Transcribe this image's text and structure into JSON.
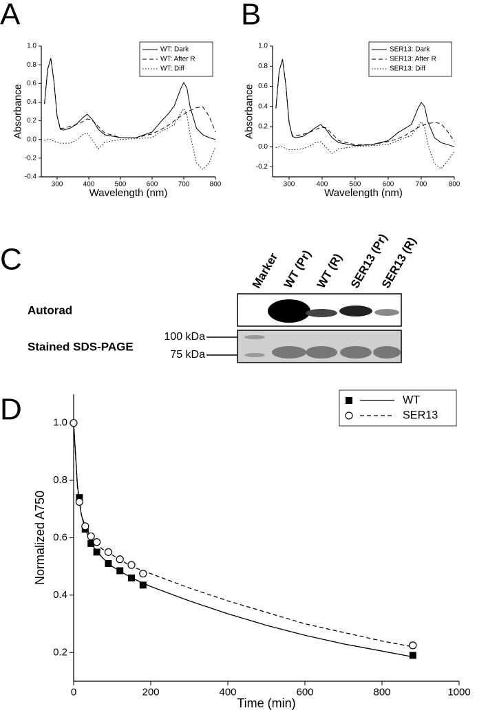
{
  "panel_labels": [
    "A",
    "B",
    "C",
    "D"
  ],
  "gel": {
    "lanes": [
      "Marker",
      "WT (Pr)",
      "WT (R)",
      "SER13 (Pr)",
      "SER13 (R)"
    ],
    "rows": [
      "Autorad",
      "Stained SDS-PAGE"
    ],
    "markers": [
      "100 kDa",
      "75 kDa"
    ]
  },
  "chart_data": [
    {
      "type": "line",
      "x_label": "Wavelength (nm)",
      "y_label": "Absorbance",
      "x": [
        260,
        270,
        280,
        290,
        300,
        310,
        320,
        340,
        360,
        380,
        395,
        410,
        430,
        450,
        500,
        550,
        600,
        630,
        650,
        670,
        690,
        700,
        710,
        720,
        740,
        760,
        780,
        800
      ],
      "series": [
        {
          "name": "WT: Dark",
          "color": "#000000",
          "style": "solid",
          "values": [
            0.38,
            0.75,
            0.87,
            0.62,
            0.25,
            0.11,
            0.1,
            0.12,
            0.16,
            0.23,
            0.27,
            0.22,
            0.11,
            0.05,
            0.02,
            0.02,
            0.08,
            0.2,
            0.27,
            0.36,
            0.54,
            0.61,
            0.55,
            0.35,
            0.12,
            0.05,
            0.02,
            0.0
          ]
        },
        {
          "name": "WT: After R",
          "color": "#000000",
          "style": "dashed",
          "values": [
            0.38,
            0.75,
            0.87,
            0.62,
            0.25,
            0.12,
            0.12,
            0.14,
            0.16,
            0.19,
            0.22,
            0.21,
            0.14,
            0.07,
            0.02,
            0.02,
            0.06,
            0.11,
            0.15,
            0.2,
            0.25,
            0.27,
            0.29,
            0.31,
            0.34,
            0.35,
            0.25,
            0.08
          ]
        },
        {
          "name": "WT: Diff",
          "color": "#000000",
          "style": "dotted",
          "values": [
            -0.01,
            0.0,
            0.0,
            -0.02,
            -0.03,
            -0.04,
            -0.04,
            -0.04,
            -0.01,
            0.05,
            0.07,
            0.0,
            -0.1,
            -0.03,
            0.0,
            0.01,
            0.02,
            0.09,
            0.12,
            0.16,
            0.28,
            0.33,
            0.26,
            0.05,
            -0.25,
            -0.32,
            -0.25,
            -0.08
          ]
        }
      ],
      "xlim": [
        250,
        800
      ],
      "xticks": [
        300,
        400,
        500,
        600,
        700,
        800
      ],
      "ylim": [
        -0.4,
        1.0
      ],
      "yticks": [
        -0.4,
        -0.2,
        {
          "value": 0,
          "label": "0.0"
        },
        0.2,
        0.4,
        0.6,
        0.8,
        {
          "value": 1,
          "label": "1.0"
        }
      ],
      "legend": "upper right"
    },
    {
      "type": "line",
      "x_label": "Wavelength (nm)",
      "y_label": "Absorbance",
      "x": [
        260,
        270,
        280,
        290,
        300,
        310,
        320,
        340,
        360,
        380,
        395,
        410,
        430,
        450,
        500,
        550,
        600,
        630,
        650,
        670,
        690,
        700,
        710,
        720,
        740,
        760,
        780,
        800
      ],
      "series": [
        {
          "name": "SER13: Dark",
          "color": "#000000",
          "style": "solid",
          "values": [
            0.38,
            0.75,
            0.87,
            0.62,
            0.24,
            0.1,
            0.09,
            0.1,
            0.14,
            0.19,
            0.22,
            0.18,
            0.09,
            0.04,
            0.01,
            0.02,
            0.06,
            0.14,
            0.18,
            0.22,
            0.38,
            0.44,
            0.4,
            0.25,
            0.09,
            0.04,
            0.02,
            0.0
          ]
        },
        {
          "name": "SER13: After R",
          "color": "#000000",
          "style": "dashed",
          "values": [
            0.38,
            0.75,
            0.87,
            0.62,
            0.24,
            0.11,
            0.11,
            0.12,
            0.14,
            0.17,
            0.19,
            0.19,
            0.13,
            0.06,
            0.02,
            0.02,
            0.05,
            0.08,
            0.11,
            0.15,
            0.19,
            0.21,
            0.22,
            0.23,
            0.24,
            0.23,
            0.15,
            0.05
          ]
        },
        {
          "name": "SER13: Diff",
          "color": "#000000",
          "style": "dotted",
          "values": [
            -0.01,
            0.0,
            0.0,
            -0.02,
            -0.03,
            -0.03,
            -0.03,
            -0.02,
            0.0,
            0.04,
            0.05,
            0.0,
            -0.07,
            -0.02,
            0.0,
            0.01,
            0.02,
            0.06,
            0.09,
            0.11,
            0.2,
            0.25,
            0.19,
            0.03,
            -0.17,
            -0.22,
            -0.14,
            -0.05
          ]
        }
      ],
      "xlim": [
        250,
        800
      ],
      "xticks": [
        300,
        400,
        500,
        600,
        700,
        800
      ],
      "ylim": [
        -0.3,
        1.0
      ],
      "yticks": [
        -0.2,
        {
          "value": 0,
          "label": "0.0"
        },
        0.2,
        0.4,
        0.6,
        0.8,
        {
          "value": 1,
          "label": "1.0"
        }
      ],
      "legend": "upper right"
    },
    {
      "type": "scatter",
      "x_label": "Time (min)",
      "y_label": "Normalized A750",
      "series": [
        {
          "name": "WT",
          "color": "#000000",
          "marker": "square",
          "style": "solid",
          "x": [
            15,
            30,
            45,
            60,
            90,
            120,
            150,
            180,
            880
          ],
          "values": [
            0.74,
            0.63,
            0.58,
            0.55,
            0.51,
            0.485,
            0.46,
            0.435,
            0.19
          ],
          "fit_x": [
            0,
            10,
            20,
            30,
            50,
            75,
            100,
            150,
            200,
            300,
            400,
            500,
            600,
            700,
            800,
            880
          ],
          "fit_values": [
            1.0,
            0.78,
            0.68,
            0.63,
            0.57,
            0.53,
            0.5,
            0.46,
            0.43,
            0.38,
            0.335,
            0.295,
            0.26,
            0.23,
            0.205,
            0.185
          ]
        },
        {
          "name": "SER13",
          "color": "#000000",
          "marker": "circle",
          "style": "dashed",
          "x": [
            0,
            15,
            30,
            45,
            60,
            90,
            120,
            150,
            180,
            880
          ],
          "values": [
            1.0,
            0.725,
            0.64,
            0.605,
            0.585,
            0.55,
            0.525,
            0.505,
            0.475,
            0.225
          ],
          "fit_x": [
            0,
            10,
            20,
            30,
            50,
            75,
            100,
            150,
            200,
            300,
            400,
            500,
            600,
            700,
            800,
            880
          ],
          "fit_values": [
            1.0,
            0.77,
            0.68,
            0.64,
            0.59,
            0.56,
            0.54,
            0.5,
            0.475,
            0.425,
            0.38,
            0.34,
            0.3,
            0.27,
            0.24,
            0.22
          ]
        }
      ],
      "xlim": [
        0,
        1000
      ],
      "xticks": [
        0,
        200,
        400,
        600,
        800,
        1000
      ],
      "ylim": [
        0.1,
        1.1
      ],
      "yticks": [
        0.2,
        0.4,
        0.6,
        0.8,
        {
          "value": 1,
          "label": "1.0"
        }
      ],
      "legend": "upper right"
    }
  ]
}
